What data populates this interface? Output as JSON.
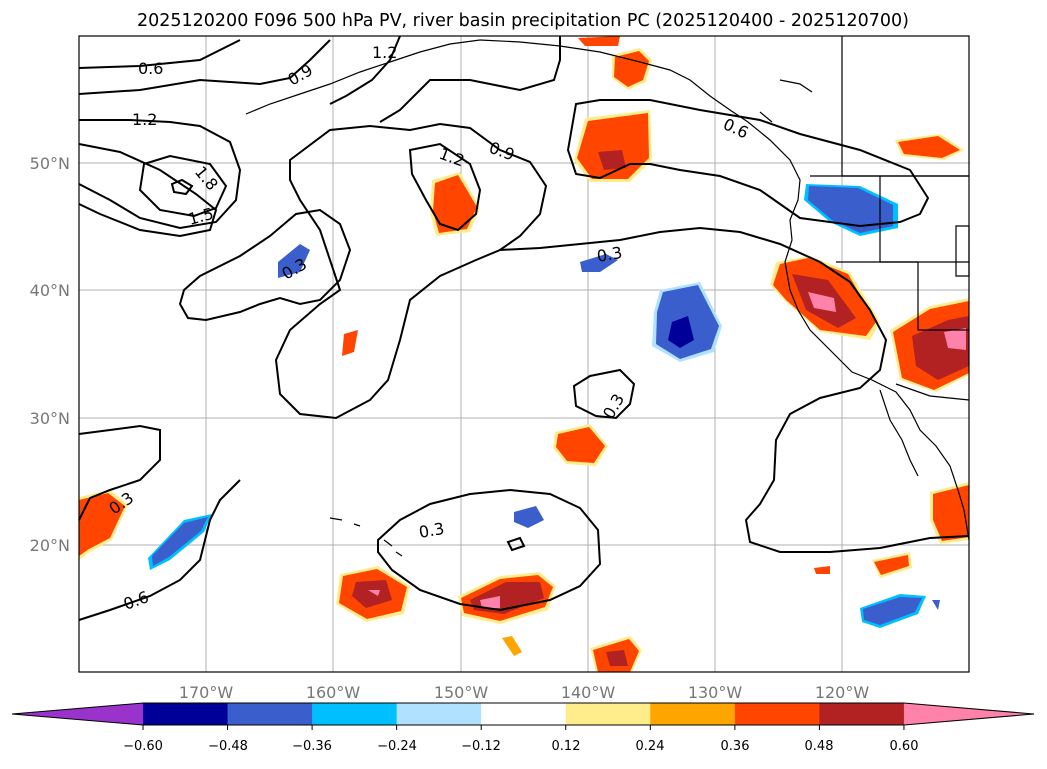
{
  "title": "2025120200 F096 500 hPa PV, river basin precipitation PC (2025120400 - 2025120700)",
  "map": {
    "lon_ticks": [
      "170°W",
      "160°W",
      "150°W",
      "140°W",
      "130°W",
      "120°W"
    ],
    "lat_ticks": [
      "50°N",
      "40°N",
      "30°N",
      "20°N"
    ],
    "grid": true
  },
  "contour_labels": [
    "0.6",
    "0.9",
    "1.2",
    "1.2",
    "1.8",
    "1.5",
    "1.2",
    "0.9",
    "0.3",
    "0.3",
    "0.3",
    "0.3",
    "0.3",
    "0.6",
    "0.6"
  ],
  "colorbar": {
    "ticks": [
      "−0.60",
      "−0.48",
      "−0.36",
      "−0.24",
      "−0.12",
      "0.12",
      "0.24",
      "0.36",
      "0.48",
      "0.60"
    ],
    "colors": [
      "#9933cc",
      "#000099",
      "#3a5fcd",
      "#00bfff",
      "#b0e2ff",
      "#ffffff",
      "#ffec8b",
      "#ffa500",
      "#ff4500",
      "#b22222",
      "#ff82ab"
    ]
  }
}
